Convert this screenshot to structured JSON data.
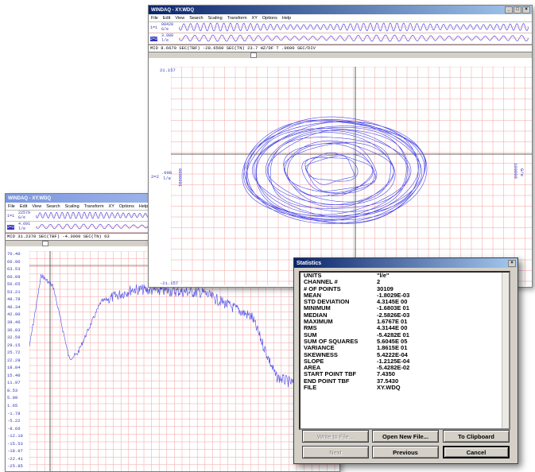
{
  "back_window": {
    "title": "WINDAQ - XY.WDQ",
    "menu": [
      "File",
      "Edit",
      "View",
      "Search",
      "Scaling",
      "Transform",
      "XY",
      "Options",
      "Help"
    ],
    "ch1_value": "22579",
    "ch1_unit": "G/e",
    "ch1_id": "1=1",
    "ch2_value": "4.691",
    "ch2_unit": "l/e",
    "ch2_id": "2=2",
    "readout": "MID    31.2370 SEC(TBF)    -4.3060 SEC(TN)  63",
    "y_ticks": [
      "70.40",
      "66.96",
      "63.53",
      "60.09",
      "56.65",
      "53.21",
      "49.78",
      "46.34",
      "42.90",
      "39.46",
      "36.03",
      "32.59",
      "29.15",
      "25.72",
      "22.28",
      "18.84",
      "15.40",
      "11.97",
      "8.53",
      "5.09",
      "1.65",
      "-1.78",
      "-5.22",
      "-8.66",
      "-12.10",
      "-15.53",
      "-18.97",
      "-22.41",
      "-25.85"
    ]
  },
  "front_window": {
    "title": "WINDAQ - XY.WDQ",
    "menu": [
      "File",
      "Edit",
      "View",
      "Search",
      "Scaling",
      "Transform",
      "XY",
      "Options",
      "Help"
    ],
    "window_controls": [
      "_",
      "□",
      "×"
    ],
    "ch1_value": "00428",
    "ch1_unit": "G/e",
    "ch1_id": "1=1",
    "ch2_value": "3.988",
    "ch2_unit": "l/e",
    "ch2_id": "2=2",
    "readout": "MID    8.6670 SEC(TBF)    -28.6560 SEC(TN)   23.7  HZ/DF T    .0600 SEC/DIV",
    "y_top": "21.157",
    "y_bottom": "-21.157",
    "left_label_id": "2=2",
    "left_label_value": ".008",
    "left_label_unit": "l/e",
    "right_label_value": "100000",
    "right_label_unit": "G/e",
    "bottom_left_value": "0000001"
  },
  "statistics": {
    "title": "Statistics",
    "close_glyph": "×",
    "rows": [
      {
        "k": "UNITS",
        "v": "\"l/e\""
      },
      {
        "k": "CHANNEL #",
        "v": "2"
      },
      {
        "k": "# OF POINTS",
        "v": "30109"
      },
      {
        "k": "MEAN",
        "v": "-1.8029E-03"
      },
      {
        "k": "STD DEVIATION",
        "v": "4.3145E 00"
      },
      {
        "k": "MINIMUM",
        "v": "-1.6803E 01"
      },
      {
        "k": "MEDIAN",
        "v": "-2.5826E-03"
      },
      {
        "k": "MAXIMUM",
        "v": "1.6767E 01"
      },
      {
        "k": "RMS",
        "v": "4.3144E 00"
      },
      {
        "k": "SUM",
        "v": "-5.4282E 01"
      },
      {
        "k": "SUM OF SQUARES",
        "v": "5.6045E 05"
      },
      {
        "k": "VARIANCE",
        "v": "1.8615E 01"
      },
      {
        "k": "SKEWNESS",
        "v": "5.4222E-04"
      },
      {
        "k": "SLOPE",
        "v": "-1.2125E-04"
      },
      {
        "k": "AREA",
        "v": "-5.4282E-02"
      },
      {
        "k": "START POINT TBF",
        "v": "7.4350"
      },
      {
        "k": "END POINT TBF",
        "v": "37.5430"
      },
      {
        "k": "FILE",
        "v": "XY.WDQ"
      }
    ],
    "buttons": {
      "write": "Write to File...",
      "open": "Open New File...",
      "clipboard": "To Clipboard",
      "next": "Next",
      "previous": "Previous",
      "cancel": "Cancel"
    }
  },
  "colors": {
    "trace": "#4a4ae8",
    "grid": "#f2a0a0",
    "title_active": "#0a246a"
  }
}
